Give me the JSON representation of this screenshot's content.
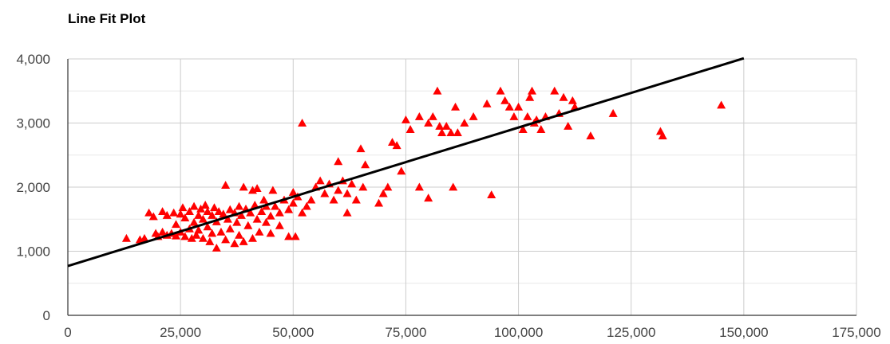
{
  "chart_data": {
    "type": "scatter",
    "title": "Line Fit Plot",
    "xlabel": "",
    "ylabel": "",
    "xlim": [
      0,
      175000
    ],
    "ylim": [
      0,
      4000
    ],
    "x_ticks": [
      0,
      25000,
      50000,
      75000,
      100000,
      125000,
      150000,
      175000
    ],
    "x_tick_labels": [
      "0",
      "25,000",
      "50,000",
      "75,000",
      "100,000",
      "125,000",
      "150,000",
      "175,000"
    ],
    "y_ticks": [
      0,
      1000,
      2000,
      3000,
      4000
    ],
    "y_tick_labels": [
      "0",
      "1,000",
      "2,000",
      "3,000",
      "4,000"
    ],
    "grid": true,
    "marker": "triangle",
    "marker_color": "#ff0000",
    "line_color": "#000000",
    "fit_line": {
      "x": [
        0,
        150000
      ],
      "y": [
        770,
        4010
      ]
    },
    "points": [
      [
        13000,
        1200
      ],
      [
        16000,
        1180
      ],
      [
        17000,
        1200
      ],
      [
        18000,
        1600
      ],
      [
        19000,
        1540
      ],
      [
        19500,
        1280
      ],
      [
        20000,
        1230
      ],
      [
        21000,
        1300
      ],
      [
        21000,
        1620
      ],
      [
        22000,
        1250
      ],
      [
        22000,
        1560
      ],
      [
        23000,
        1280
      ],
      [
        23500,
        1600
      ],
      [
        24000,
        1240
      ],
      [
        24000,
        1420
      ],
      [
        25000,
        1300
      ],
      [
        25000,
        1580
      ],
      [
        25500,
        1680
      ],
      [
        26000,
        1230
      ],
      [
        26000,
        1520
      ],
      [
        27000,
        1350
      ],
      [
        27000,
        1620
      ],
      [
        27500,
        1200
      ],
      [
        28000,
        1700
      ],
      [
        28000,
        1450
      ],
      [
        28500,
        1250
      ],
      [
        29000,
        1560
      ],
      [
        29000,
        1330
      ],
      [
        29500,
        1660
      ],
      [
        30000,
        1200
      ],
      [
        30000,
        1500
      ],
      [
        30500,
        1720
      ],
      [
        31000,
        1380
      ],
      [
        31000,
        1620
      ],
      [
        31500,
        1150
      ],
      [
        32000,
        1560
      ],
      [
        32000,
        1280
      ],
      [
        32500,
        1680
      ],
      [
        33000,
        1050
      ],
      [
        33000,
        1460
      ],
      [
        33500,
        1620
      ],
      [
        34000,
        1300
      ],
      [
        34500,
        1580
      ],
      [
        35000,
        2030
      ],
      [
        35000,
        1180
      ],
      [
        35500,
        1500
      ],
      [
        36000,
        1650
      ],
      [
        36000,
        1350
      ],
      [
        37000,
        1120
      ],
      [
        37000,
        1600
      ],
      [
        37500,
        1450
      ],
      [
        38000,
        1700
      ],
      [
        38000,
        1250
      ],
      [
        38500,
        1560
      ],
      [
        39000,
        2000
      ],
      [
        39000,
        1150
      ],
      [
        39500,
        1660
      ],
      [
        40000,
        1400
      ],
      [
        40500,
        1600
      ],
      [
        41000,
        1950
      ],
      [
        41000,
        1200
      ],
      [
        41500,
        1720
      ],
      [
        42000,
        1500
      ],
      [
        42000,
        1980
      ],
      [
        42500,
        1300
      ],
      [
        43000,
        1620
      ],
      [
        43500,
        1800
      ],
      [
        44000,
        1450
      ],
      [
        44000,
        1700
      ],
      [
        45000,
        1280
      ],
      [
        45000,
        1550
      ],
      [
        45500,
        1950
      ],
      [
        46000,
        1700
      ],
      [
        47000,
        1600
      ],
      [
        47000,
        1400
      ],
      [
        48000,
        1800
      ],
      [
        49000,
        1650
      ],
      [
        49000,
        1230
      ],
      [
        50000,
        1920
      ],
      [
        50000,
        1750
      ],
      [
        50500,
        1230
      ],
      [
        51000,
        1850
      ],
      [
        52000,
        3000
      ],
      [
        52000,
        1600
      ],
      [
        53000,
        1700
      ],
      [
        54000,
        1800
      ],
      [
        55000,
        2000
      ],
      [
        56000,
        2100
      ],
      [
        57000,
        1900
      ],
      [
        58000,
        2050
      ],
      [
        59000,
        1800
      ],
      [
        60000,
        1950
      ],
      [
        60000,
        2400
      ],
      [
        61000,
        2100
      ],
      [
        62000,
        1600
      ],
      [
        62000,
        1900
      ],
      [
        63000,
        2050
      ],
      [
        64000,
        1800
      ],
      [
        65000,
        2600
      ],
      [
        65500,
        2000
      ],
      [
        66000,
        2350
      ],
      [
        69000,
        1750
      ],
      [
        70000,
        1900
      ],
      [
        71000,
        2000
      ],
      [
        72000,
        2700
      ],
      [
        73000,
        2650
      ],
      [
        74000,
        2250
      ],
      [
        75000,
        3050
      ],
      [
        76000,
        2900
      ],
      [
        78000,
        2000
      ],
      [
        78000,
        3100
      ],
      [
        80000,
        3000
      ],
      [
        80000,
        1830
      ],
      [
        81000,
        3100
      ],
      [
        82000,
        3500
      ],
      [
        82500,
        2950
      ],
      [
        83000,
        2850
      ],
      [
        84000,
        2950
      ],
      [
        85000,
        2850
      ],
      [
        85500,
        2000
      ],
      [
        86000,
        3250
      ],
      [
        86500,
        2850
      ],
      [
        88000,
        3000
      ],
      [
        90000,
        3100
      ],
      [
        93000,
        3300
      ],
      [
        94000,
        1880
      ],
      [
        96000,
        3500
      ],
      [
        97000,
        3350
      ],
      [
        98000,
        3250
      ],
      [
        99000,
        3100
      ],
      [
        100000,
        3250
      ],
      [
        101000,
        2900
      ],
      [
        102000,
        3100
      ],
      [
        102500,
        3400
      ],
      [
        103000,
        3500
      ],
      [
        103500,
        3000
      ],
      [
        104000,
        3050
      ],
      [
        105000,
        2900
      ],
      [
        106000,
        3100
      ],
      [
        108000,
        3500
      ],
      [
        109000,
        3150
      ],
      [
        110000,
        3400
      ],
      [
        111000,
        2950
      ],
      [
        112000,
        3350
      ],
      [
        112500,
        3250
      ],
      [
        116000,
        2800
      ],
      [
        121000,
        3150
      ],
      [
        131500,
        2870
      ],
      [
        132000,
        2800
      ],
      [
        145000,
        3280
      ]
    ]
  }
}
